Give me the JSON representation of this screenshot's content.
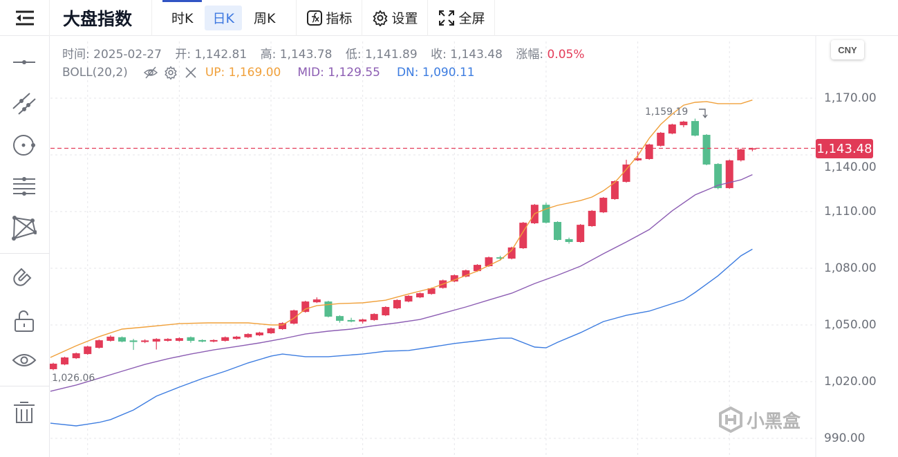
{
  "header": {
    "title": "大盘指数",
    "tabs": [
      {
        "label": "时K"
      },
      {
        "label": "日K",
        "active": true
      },
      {
        "label": "周K"
      }
    ],
    "tools": [
      {
        "label": "指标",
        "icon": "fx-icon"
      },
      {
        "label": "设置",
        "icon": "gear-icon"
      },
      {
        "label": "全屏",
        "icon": "fullscreen-icon"
      }
    ]
  },
  "info": {
    "time_label": "时间:",
    "time": "2025-02-27",
    "open_label": "开:",
    "open": "1,142.81",
    "high_label": "高:",
    "high": "1,143.78",
    "low_label": "低:",
    "low": "1,141.89",
    "close_label": "收:",
    "close": "1,143.48",
    "change_label": "涨幅:",
    "change": "0.05%"
  },
  "indicator": {
    "name": "BOLL(20,2)",
    "up": "UP: 1,169.00",
    "mid": "MID: 1,129.55",
    "dn": "DN: 1,090.11"
  },
  "currency": "CNY",
  "last_price_tag": "1,143.48",
  "watermark": "小黑盒",
  "colors": {
    "up": "#e33b58",
    "down": "#55bd8e",
    "boll_up": "#f0a03a",
    "boll_mid": "#8c5db3",
    "boll_dn": "#3c7ce0"
  },
  "chart_data": {
    "type": "candlestick",
    "yticks": [
      "1,170.00",
      "1,140.00",
      "1,110.00",
      "1,080.00",
      "1,050.00",
      "1,020.00",
      "990.00"
    ],
    "ytick_values": [
      1170,
      1140,
      1110,
      1080,
      1050,
      1020,
      990
    ],
    "ylim": [
      985,
      1180
    ],
    "last_price": 1143.48,
    "annotations": {
      "max": "1,159.19",
      "min": "1,026.06"
    },
    "candles_ohlc": [
      [
        1026.6,
        1030.0,
        1026.06,
        1029.5
      ],
      [
        1029.1,
        1033.2,
        1028.7,
        1032.8
      ],
      [
        1032.4,
        1035.4,
        1032.0,
        1035.0
      ],
      [
        1034.6,
        1039.0,
        1034.2,
        1038.6
      ],
      [
        1037.9,
        1042.3,
        1037.5,
        1041.9
      ],
      [
        1041.6,
        1044.5,
        1041.2,
        1043.8
      ],
      [
        1043.5,
        1043.9,
        1040.8,
        1041.2
      ],
      [
        1041.8,
        1042.6,
        1036.8,
        1041.0
      ],
      [
        1041.0,
        1042.4,
        1040.4,
        1041.8
      ],
      [
        1041.2,
        1043.0,
        1037.0,
        1042.6
      ],
      [
        1041.6,
        1043.0,
        1041.2,
        1042.6
      ],
      [
        1041.6,
        1043.4,
        1041.2,
        1043.0
      ],
      [
        1043.5,
        1043.9,
        1040.6,
        1041.6
      ],
      [
        1042.0,
        1042.4,
        1040.8,
        1041.2
      ],
      [
        1041.2,
        1042.4,
        1040.8,
        1042.0
      ],
      [
        1041.6,
        1043.9,
        1041.2,
        1043.5
      ],
      [
        1042.6,
        1044.2,
        1042.2,
        1043.8
      ],
      [
        1043.5,
        1045.6,
        1043.1,
        1045.2
      ],
      [
        1044.5,
        1046.4,
        1044.1,
        1046.0
      ],
      [
        1045.6,
        1048.6,
        1045.2,
        1048.2
      ],
      [
        1047.8,
        1051.4,
        1047.4,
        1051.0
      ],
      [
        1050.7,
        1058.1,
        1050.3,
        1057.7
      ],
      [
        1056.9,
        1062.8,
        1056.5,
        1062.4
      ],
      [
        1062.0,
        1064.6,
        1061.6,
        1063.5
      ],
      [
        1062.4,
        1062.8,
        1054.0,
        1054.4
      ],
      [
        1054.7,
        1055.1,
        1051.2,
        1052.2
      ],
      [
        1052.6,
        1053.8,
        1051.4,
        1051.8
      ],
      [
        1051.8,
        1053.3,
        1050.8,
        1052.9
      ],
      [
        1052.6,
        1056.2,
        1052.2,
        1055.8
      ],
      [
        1055.1,
        1059.9,
        1054.7,
        1059.5
      ],
      [
        1058.8,
        1063.6,
        1058.4,
        1063.2
      ],
      [
        1062.4,
        1065.8,
        1062.0,
        1065.4
      ],
      [
        1064.6,
        1067.2,
        1064.2,
        1066.8
      ],
      [
        1066.4,
        1069.8,
        1066.0,
        1069.4
      ],
      [
        1069.6,
        1074.0,
        1069.2,
        1073.6
      ],
      [
        1073.0,
        1076.7,
        1072.6,
        1076.3
      ],
      [
        1075.6,
        1079.3,
        1075.2,
        1078.9
      ],
      [
        1078.5,
        1082.2,
        1078.1,
        1081.8
      ],
      [
        1081.1,
        1086.2,
        1080.7,
        1085.8
      ],
      [
        1085.8,
        1086.6,
        1084.0,
        1085.1
      ],
      [
        1085.1,
        1091.4,
        1084.7,
        1091.0
      ],
      [
        1090.6,
        1104.5,
        1090.2,
        1104.1
      ],
      [
        1103.8,
        1114.0,
        1103.4,
        1113.6
      ],
      [
        1113.6,
        1114.7,
        1103.7,
        1104.1
      ],
      [
        1104.5,
        1104.9,
        1094.6,
        1095.0
      ],
      [
        1095.4,
        1096.2,
        1093.0,
        1093.9
      ],
      [
        1093.9,
        1103.4,
        1093.5,
        1103.0
      ],
      [
        1102.3,
        1110.8,
        1101.9,
        1110.4
      ],
      [
        1109.6,
        1117.7,
        1109.2,
        1117.3
      ],
      [
        1116.6,
        1126.5,
        1116.2,
        1126.1
      ],
      [
        1125.7,
        1137.4,
        1125.3,
        1134.9
      ],
      [
        1137.1,
        1141.8,
        1136.7,
        1138.2
      ],
      [
        1137.8,
        1145.9,
        1137.4,
        1145.5
      ],
      [
        1144.8,
        1152.1,
        1144.4,
        1151.7
      ],
      [
        1151.3,
        1156.5,
        1150.9,
        1156.1
      ],
      [
        1155.7,
        1158.0,
        1154.6,
        1157.6
      ],
      [
        1157.9,
        1159.19,
        1149.8,
        1150.2
      ],
      [
        1150.6,
        1151.0,
        1134.5,
        1134.9
      ],
      [
        1135.2,
        1135.6,
        1121.8,
        1122.4
      ],
      [
        1122.4,
        1137.5,
        1122.0,
        1137.1
      ],
      [
        1137.1,
        1143.3,
        1136.5,
        1142.9
      ],
      [
        1142.81,
        1143.78,
        1141.89,
        1143.48
      ]
    ],
    "boll_up": [
      [
        -0.25,
        1032.8
      ],
      [
        2,
        1039.0
      ],
      [
        4,
        1043.8
      ],
      [
        6,
        1047.8
      ],
      [
        8,
        1048.9
      ],
      [
        11,
        1050.7
      ],
      [
        13.5,
        1051.1
      ],
      [
        17,
        1051.1
      ],
      [
        19,
        1050.0
      ],
      [
        20,
        1050.0
      ],
      [
        21,
        1053.6
      ],
      [
        22,
        1058.4
      ],
      [
        23,
        1060.2
      ],
      [
        25,
        1061.3
      ],
      [
        27,
        1061.7
      ],
      [
        29,
        1063.1
      ],
      [
        31,
        1066.4
      ],
      [
        33,
        1069.4
      ],
      [
        35,
        1073.8
      ],
      [
        37,
        1078.5
      ],
      [
        39,
        1084.4
      ],
      [
        40,
        1089.5
      ],
      [
        41,
        1099.4
      ],
      [
        42,
        1108.9
      ],
      [
        43,
        1111.4
      ],
      [
        44,
        1113.3
      ],
      [
        46,
        1115.8
      ],
      [
        47,
        1117.7
      ],
      [
        48,
        1121.0
      ],
      [
        49,
        1125.4
      ],
      [
        50,
        1132.3
      ],
      [
        51,
        1139.6
      ],
      [
        52,
        1148.8
      ],
      [
        53,
        1156.1
      ],
      [
        54,
        1161.6
      ],
      [
        55,
        1166.3
      ],
      [
        56,
        1167.8
      ],
      [
        57,
        1168.2
      ],
      [
        58,
        1167.1
      ],
      [
        60,
        1167.1
      ],
      [
        61,
        1169.0
      ]
    ],
    "boll_mid": [
      [
        -0.25,
        1014.9
      ],
      [
        2,
        1018.2
      ],
      [
        4,
        1021.8
      ],
      [
        6,
        1025.5
      ],
      [
        8,
        1029.1
      ],
      [
        10,
        1032.1
      ],
      [
        12,
        1034.6
      ],
      [
        14,
        1036.8
      ],
      [
        16,
        1038.6
      ],
      [
        18,
        1040.5
      ],
      [
        20,
        1042.7
      ],
      [
        22,
        1045.2
      ],
      [
        24,
        1046.7
      ],
      [
        26,
        1047.8
      ],
      [
        28,
        1049.6
      ],
      [
        30,
        1051.1
      ],
      [
        32,
        1052.9
      ],
      [
        34,
        1056.2
      ],
      [
        36,
        1059.5
      ],
      [
        38,
        1063.2
      ],
      [
        40,
        1066.8
      ],
      [
        42,
        1071.9
      ],
      [
        44,
        1076.3
      ],
      [
        46,
        1081.1
      ],
      [
        48,
        1087.7
      ],
      [
        50,
        1093.9
      ],
      [
        52,
        1100.5
      ],
      [
        54,
        1110.4
      ],
      [
        56,
        1118.8
      ],
      [
        58,
        1123.9
      ],
      [
        60,
        1126.8
      ],
      [
        61,
        1129.55
      ]
    ],
    "boll_dn": [
      [
        -0.25,
        998.0
      ],
      [
        2,
        996.6
      ],
      [
        4,
        998.4
      ],
      [
        5,
        999.9
      ],
      [
        7,
        1005.0
      ],
      [
        9,
        1012.3
      ],
      [
        11,
        1017.1
      ],
      [
        13,
        1021.6
      ],
      [
        15,
        1025.5
      ],
      [
        17,
        1029.9
      ],
      [
        19,
        1033.5
      ],
      [
        20,
        1034.6
      ],
      [
        22,
        1033.2
      ],
      [
        24,
        1033.2
      ],
      [
        27,
        1034.6
      ],
      [
        29,
        1036.1
      ],
      [
        31,
        1036.5
      ],
      [
        33,
        1038.3
      ],
      [
        35,
        1040.2
      ],
      [
        37,
        1041.6
      ],
      [
        39,
        1043.0
      ],
      [
        40,
        1043.0
      ],
      [
        42,
        1038.3
      ],
      [
        43,
        1037.9
      ],
      [
        44,
        1040.8
      ],
      [
        46,
        1045.9
      ],
      [
        48,
        1051.8
      ],
      [
        50,
        1055.1
      ],
      [
        52,
        1057.3
      ],
      [
        55,
        1063.2
      ],
      [
        56,
        1067.2
      ],
      [
        58,
        1076.0
      ],
      [
        60,
        1086.6
      ],
      [
        61,
        1090.11
      ]
    ]
  }
}
